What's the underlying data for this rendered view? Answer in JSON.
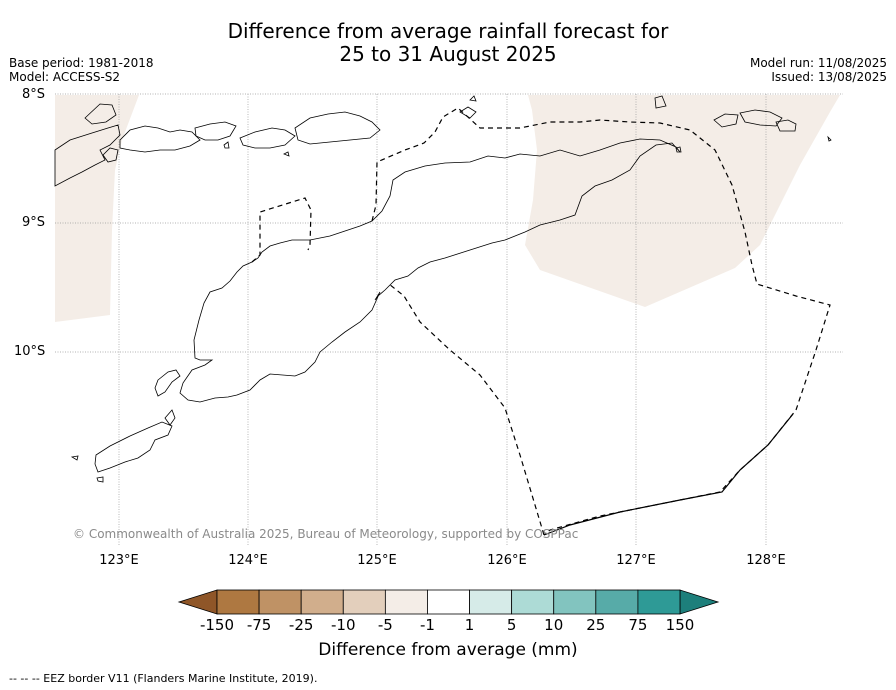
{
  "title": {
    "line1": "Difference from average rainfall forecast for",
    "line2": "25 to 31 August 2025"
  },
  "meta": {
    "base_period": "Base period: 1981-2018",
    "model": "Model: ACCESS-S2",
    "model_run": "Model run: 11/08/2025",
    "issued": "Issued: 13/08/2025"
  },
  "axes": {
    "lat_labels": [
      "8°S",
      "9°S",
      "10°S"
    ],
    "lon_labels": [
      "123°E",
      "124°E",
      "125°E",
      "126°E",
      "127°E",
      "128°E"
    ]
  },
  "copyright": "© Commonwealth of Australia 2025, Bureau of Meteorology, supported by COSPPac",
  "colorbar": {
    "title": "Difference from average (mm)",
    "labels": [
      "-150",
      "-75",
      "-25",
      "-10",
      "-5",
      "-1",
      "1",
      "5",
      "10",
      "25",
      "75",
      "150"
    ],
    "colors": [
      "#ae7841",
      "#bf9265",
      "#d1ae8c",
      "#e3cfbc",
      "#f4ede7",
      "#ffffff",
      "#d6ebe8",
      "#addbd6",
      "#82c4bf",
      "#57aba8",
      "#2e9a96"
    ],
    "low_extend_color": "#8f5628",
    "high_extend_color": "#1d7f7b"
  },
  "footer": "--  --  -- EEZ border V11 (Flanders Marine Institute, 2019).",
  "map": {
    "shading_color": "#f4ede7"
  }
}
